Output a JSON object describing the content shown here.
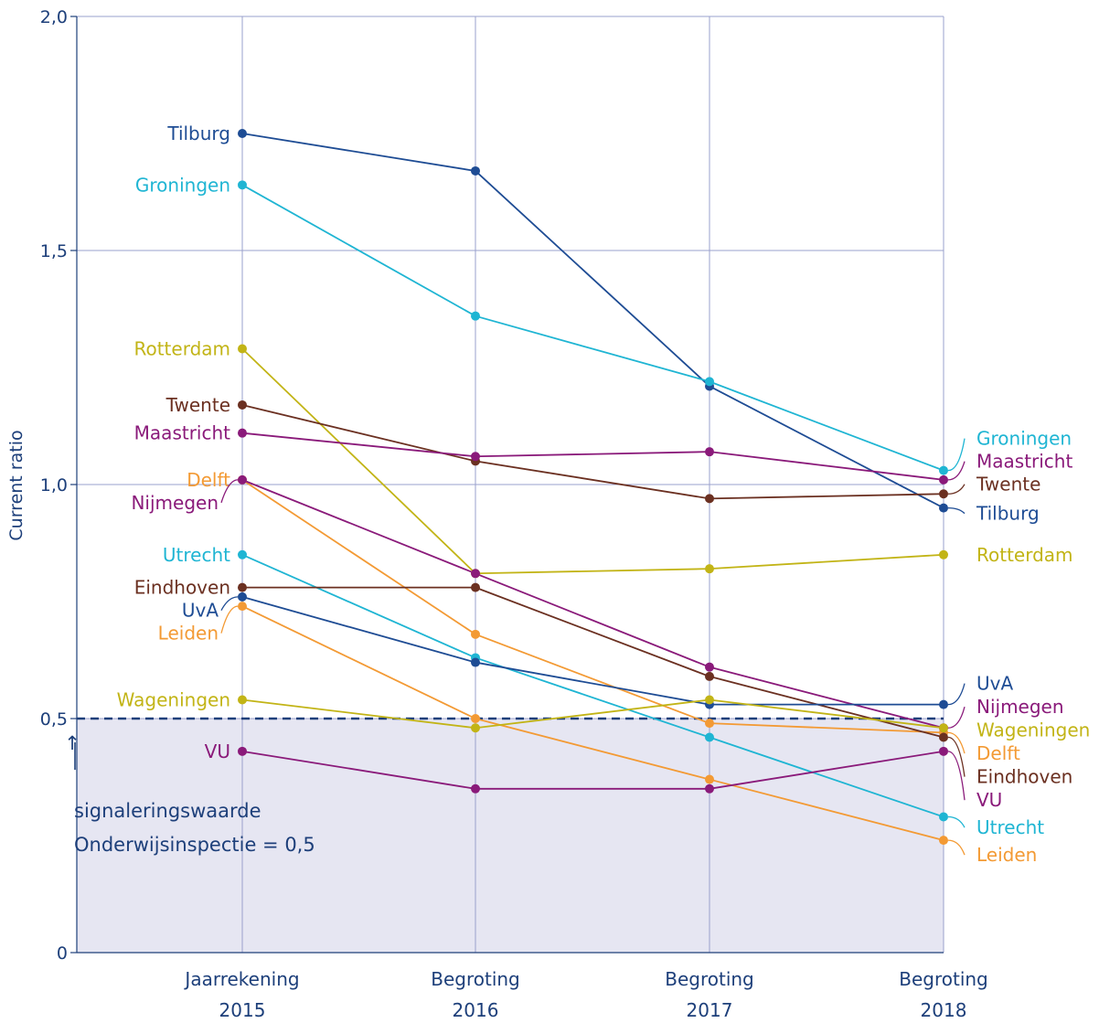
{
  "chart_data": {
    "type": "line",
    "ylabel": "Current ratio",
    "xlabel": "",
    "ylim": [
      0,
      2.0
    ],
    "y_ticks": [
      "0",
      "0,5",
      "1,0",
      "1,5",
      "2,0"
    ],
    "categories": [
      [
        "Jaarrekening",
        "2015"
      ],
      [
        "Begroting",
        "2016"
      ],
      [
        "Begroting",
        "2017"
      ],
      [
        "Begroting",
        "2018"
      ]
    ],
    "grid": true,
    "threshold": {
      "value": 0.5,
      "arrow": "↑",
      "label_line1": "signaleringswaarde",
      "label_line2": "Onderwijsinspectie = 0,5"
    },
    "series": [
      {
        "name": "Tilburg",
        "color": "#1e4c94",
        "values": [
          1.75,
          1.67,
          1.21,
          0.95
        ]
      },
      {
        "name": "Groningen",
        "color": "#1fb5d3",
        "values": [
          1.64,
          1.36,
          1.22,
          1.03
        ]
      },
      {
        "name": "Rotterdam",
        "color": "#c2b416",
        "values": [
          1.29,
          0.81,
          0.82,
          0.85
        ]
      },
      {
        "name": "Twente",
        "color": "#6b3021",
        "values": [
          1.17,
          1.05,
          0.97,
          0.98
        ]
      },
      {
        "name": "Maastricht",
        "color": "#8a1a7a",
        "values": [
          1.11,
          1.06,
          1.07,
          1.01
        ]
      },
      {
        "name": "Delft",
        "color": "#f39a34",
        "values": [
          1.01,
          0.68,
          0.49,
          0.47
        ]
      },
      {
        "name": "Nijmegen",
        "color": "#8a1a7a",
        "values": [
          1.01,
          0.81,
          0.61,
          0.48
        ]
      },
      {
        "name": "Utrecht",
        "color": "#1fb5d3",
        "values": [
          0.85,
          0.63,
          0.46,
          0.29
        ]
      },
      {
        "name": "Eindhoven",
        "color": "#6b3021",
        "values": [
          0.78,
          0.78,
          0.59,
          0.46
        ]
      },
      {
        "name": "UvA",
        "color": "#1e4c94",
        "values": [
          0.76,
          0.62,
          0.53,
          0.53
        ]
      },
      {
        "name": "Leiden",
        "color": "#f39a34",
        "values": [
          0.74,
          0.5,
          0.37,
          0.24
        ]
      },
      {
        "name": "Wageningen",
        "color": "#c2b416",
        "values": [
          0.54,
          0.48,
          0.54,
          0.48
        ]
      },
      {
        "name": "VU",
        "color": "#8a1a7a",
        "values": [
          0.43,
          0.35,
          0.35,
          0.43
        ]
      }
    ],
    "right_label_order": [
      "Groningen",
      "Maastricht",
      "Twente",
      "Tilburg",
      "Rotterdam",
      "UvA",
      "Nijmegen",
      "Wageningen",
      "Delft",
      "Eindhoven",
      "VU",
      "Utrecht",
      "Leiden"
    ],
    "colors": {
      "axis": "#1d3f7a",
      "grid": "#9aa0cc",
      "shade": "#e6e6f2",
      "threshold_line": "#1d3f7a"
    }
  }
}
